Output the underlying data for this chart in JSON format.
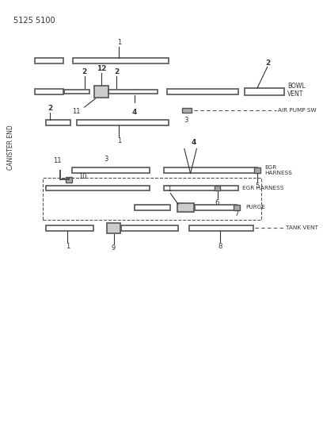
{
  "title": "5125 5100",
  "bg_color": "#ffffff",
  "line_color": "#555555",
  "text_color": "#333333",
  "canister_end_label": "CANISTER END",
  "labels": {
    "bowl_vent": "BOWL\nVENT",
    "air_pump_sw": "AIR PUMP SW",
    "egr_harness1": "EGR\nHARNESS",
    "egr_harness2": "EGR HARNESS",
    "purge": "PURGE",
    "tank_vent": "TANK VENT"
  }
}
